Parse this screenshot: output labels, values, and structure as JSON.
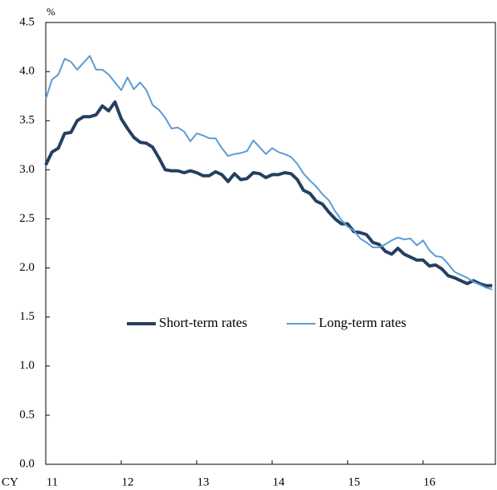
{
  "chart_data": {
    "type": "line",
    "y_unit": "%",
    "x_unit": "CY",
    "x": [
      0,
      1,
      2,
      3,
      4,
      5,
      6,
      7,
      8,
      9,
      10,
      11,
      12,
      13,
      14,
      15,
      16,
      17,
      18,
      19,
      20,
      21,
      22,
      23,
      24,
      25,
      26,
      27,
      28,
      29,
      30,
      31,
      32,
      33,
      34,
      35,
      36,
      37,
      38,
      39,
      40,
      41,
      42,
      43,
      44,
      45,
      46,
      47,
      48,
      49,
      50,
      51,
      52,
      53,
      54,
      55,
      56,
      57,
      58,
      59,
      60,
      61,
      62,
      63,
      64,
      65,
      66,
      67,
      68,
      69,
      70,
      71
    ],
    "xlim": [
      0,
      71.5
    ],
    "xticks": [
      {
        "value": 0,
        "label": "11"
      },
      {
        "value": 12,
        "label": "12"
      },
      {
        "value": 24,
        "label": "13"
      },
      {
        "value": 36,
        "label": "14"
      },
      {
        "value": 48,
        "label": "15"
      },
      {
        "value": 60,
        "label": "16"
      }
    ],
    "ylim": [
      0,
      4.5
    ],
    "yticks": [
      {
        "value": 0,
        "label": "0.0"
      },
      0.5,
      {
        "value": 1,
        "label": "1.0"
      },
      1.5,
      {
        "value": 2,
        "label": "2.0"
      },
      2.5,
      {
        "value": 3,
        "label": "3.0"
      },
      3.5,
      {
        "value": 4,
        "label": "4.0"
      },
      4.5
    ],
    "legend": "center",
    "series": [
      {
        "name": "Short-term rates",
        "color": "#243f60",
        "width": 4,
        "values": [
          3.05,
          3.18,
          3.22,
          3.37,
          3.38,
          3.5,
          3.54,
          3.54,
          3.56,
          3.65,
          3.6,
          3.69,
          3.52,
          3.42,
          3.33,
          3.28,
          3.27,
          3.23,
          3.12,
          3.0,
          2.99,
          2.99,
          2.97,
          2.99,
          2.97,
          2.94,
          2.94,
          2.98,
          2.95,
          2.88,
          2.96,
          2.9,
          2.91,
          2.97,
          2.96,
          2.92,
          2.95,
          2.95,
          2.97,
          2.96,
          2.9,
          2.79,
          2.76,
          2.68,
          2.65,
          2.57,
          2.5,
          2.45,
          2.45,
          2.37,
          2.36,
          2.34,
          2.26,
          2.24,
          2.17,
          2.14,
          2.2,
          2.14,
          2.11,
          2.08,
          2.08,
          2.02,
          2.03,
          1.99,
          1.92,
          1.9,
          1.87,
          1.84,
          1.87,
          1.84,
          1.82,
          1.82
        ]
      },
      {
        "name": "Long-term rates",
        "color": "#5b9bd5",
        "width": 2,
        "values": [
          3.72,
          3.92,
          3.97,
          4.13,
          4.1,
          4.02,
          4.09,
          4.16,
          4.02,
          4.02,
          3.97,
          3.89,
          3.81,
          3.94,
          3.82,
          3.89,
          3.81,
          3.66,
          3.61,
          3.53,
          3.42,
          3.43,
          3.39,
          3.29,
          3.37,
          3.35,
          3.32,
          3.32,
          3.22,
          3.14,
          3.16,
          3.17,
          3.19,
          3.3,
          3.23,
          3.16,
          3.22,
          3.18,
          3.16,
          3.13,
          3.06,
          2.96,
          2.89,
          2.83,
          2.75,
          2.69,
          2.58,
          2.49,
          2.42,
          2.38,
          2.3,
          2.26,
          2.21,
          2.21,
          2.24,
          2.28,
          2.31,
          2.29,
          2.3,
          2.23,
          2.28,
          2.18,
          2.12,
          2.11,
          2.04,
          1.96,
          1.93,
          1.9,
          1.86,
          1.83,
          1.8,
          1.78
        ]
      }
    ]
  }
}
